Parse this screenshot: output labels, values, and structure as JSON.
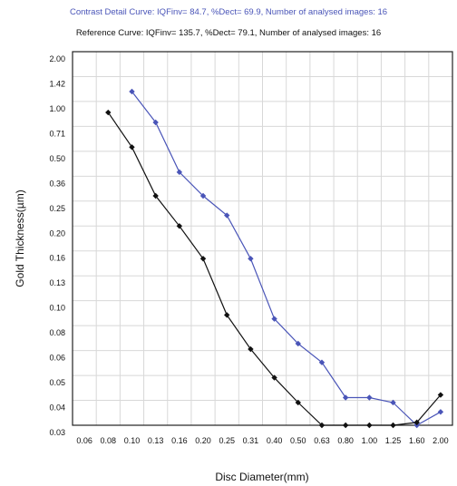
{
  "chart_data": {
    "type": "line",
    "title": "",
    "legend": [
      "Contrast Detail Curve: IQFinv= 84.7, %Dect= 69.9, Number of analysed images: 16",
      "Reference Curve: IQFinv= 135.7, %Dect= 79.1, Number of analysed images: 16"
    ],
    "legend_position": "top",
    "xlabel": "Disc Diameter(mm)",
    "ylabel": "Gold Thickness(µm)",
    "x_ticks": [
      "0.06",
      "0.08",
      "0.10",
      "0.13",
      "0.16",
      "0.20",
      "0.25",
      "0.31",
      "0.40",
      "0.50",
      "0.63",
      "0.80",
      "1.00",
      "1.25",
      "1.60",
      "2.00"
    ],
    "y_ticks": [
      "2.00",
      "1.42",
      "1.00",
      "0.71",
      "0.50",
      "0.36",
      "0.25",
      "0.20",
      "0.16",
      "0.13",
      "0.10",
      "0.08",
      "0.06",
      "0.05",
      "0.04",
      "0.03"
    ],
    "grid": true,
    "series": [
      {
        "color": "#4a55b8",
        "x": [
          "0.10",
          "0.13",
          "0.16",
          "0.20",
          "0.25",
          "0.31",
          "0.40",
          "0.50",
          "0.63",
          "0.80",
          "1.00",
          "1.25",
          "1.60",
          "2.00"
        ],
        "y": [
          "1.15",
          "0.75",
          "0.38",
          "0.27",
          "0.22",
          "0.15",
          "0.085",
          "0.065",
          "0.055",
          "0.041",
          "0.041",
          "0.039",
          "0.028",
          "0.035"
        ]
      },
      {
        "color": "#111111",
        "x": [
          "0.08",
          "0.10",
          "0.13",
          "0.16",
          "0.20",
          "0.25",
          "0.31",
          "0.40",
          "0.50",
          "0.63",
          "0.80",
          "1.00",
          "1.25",
          "1.60",
          "2.00"
        ],
        "y": [
          "0.86",
          "0.53",
          "0.27",
          "0.20",
          "0.15",
          "0.088",
          "0.061",
          "0.049",
          "0.039",
          "0.027",
          "0.027",
          "0.027",
          "0.027",
          "0.031",
          "0.042"
        ]
      }
    ]
  }
}
